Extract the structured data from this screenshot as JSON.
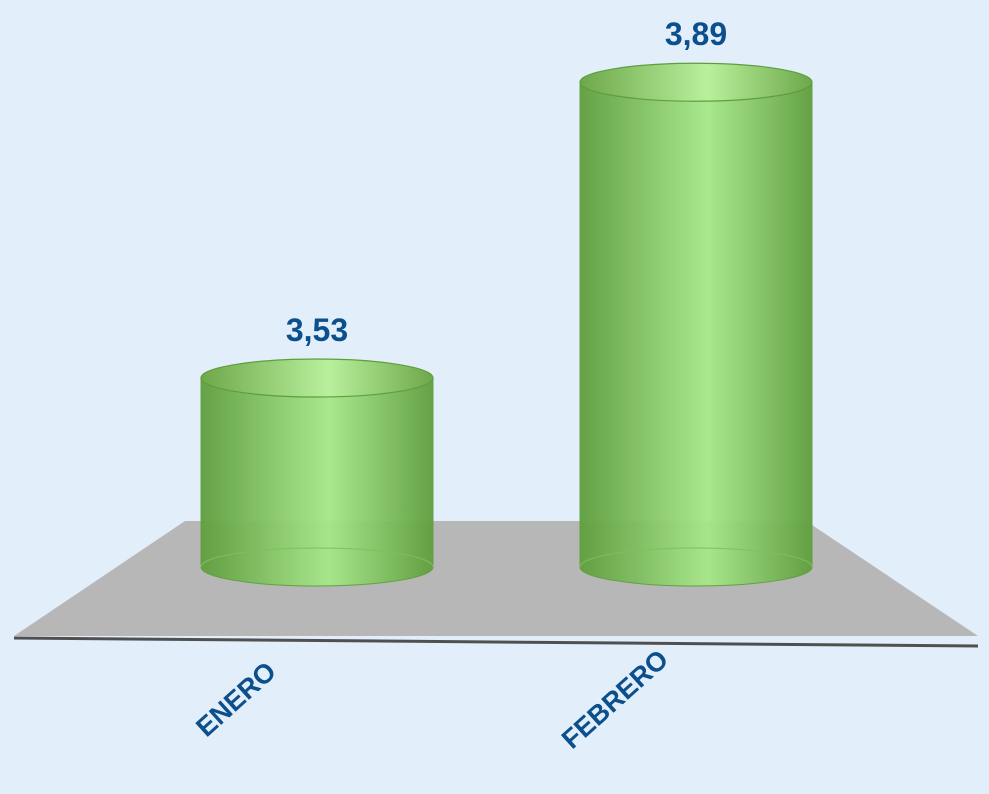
{
  "chart_data": {
    "type": "bar",
    "style": "3d-cylinder",
    "categories": [
      "ENERO",
      "FEBRERO"
    ],
    "values": [
      3.53,
      3.89
    ],
    "value_labels": [
      "3,53",
      "3,89"
    ],
    "title": "",
    "xlabel": "",
    "ylabel": "",
    "ylim": [
      3.3,
      3.9
    ],
    "grid": false,
    "legend": "none"
  },
  "colors": {
    "background": "#e3eefb",
    "floor": "#b7b7b7",
    "axis": "#505050",
    "cylinder_dark": "#5f9e3d",
    "cylinder_light": "#a7e889",
    "label": "#0b4f8c"
  }
}
